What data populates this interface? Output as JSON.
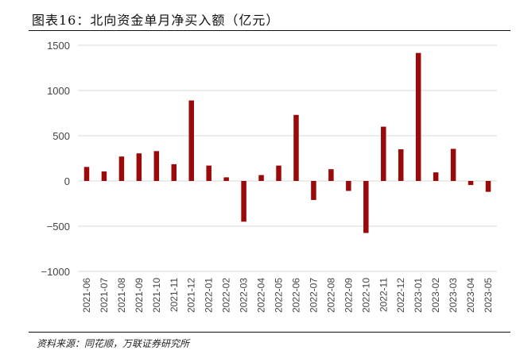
{
  "title": "图表16：北向资金单月净买入额（亿元）",
  "source": "资料来源：同花顺，万联证券研究所",
  "chart_data": {
    "type": "bar",
    "title": "图表16：北向资金单月净买入额（亿元）",
    "xlabel": "",
    "ylabel": "",
    "ylim": [
      -1000,
      1500
    ],
    "yticks": [
      -1000,
      -500,
      0,
      500,
      1000,
      1500
    ],
    "grid": true,
    "legend": "none",
    "bar_color": "#9b0a0a",
    "categories": [
      "2021-06",
      "2021-07",
      "2021-08",
      "2021-09",
      "2021-10",
      "2021-11",
      "2021-12",
      "2022-01",
      "2022-02",
      "2022-03",
      "2022-04",
      "2022-05",
      "2022-06",
      "2022-07",
      "2022-08",
      "2022-09",
      "2022-10",
      "2022-11",
      "2022-12",
      "2023-01",
      "2023-02",
      "2023-03",
      "2023-04",
      "2023-05"
    ],
    "values": [
      155,
      105,
      270,
      305,
      330,
      185,
      890,
      170,
      40,
      -450,
      65,
      170,
      730,
      -210,
      130,
      -110,
      -575,
      600,
      350,
      1415,
      95,
      355,
      -45,
      -120
    ]
  }
}
